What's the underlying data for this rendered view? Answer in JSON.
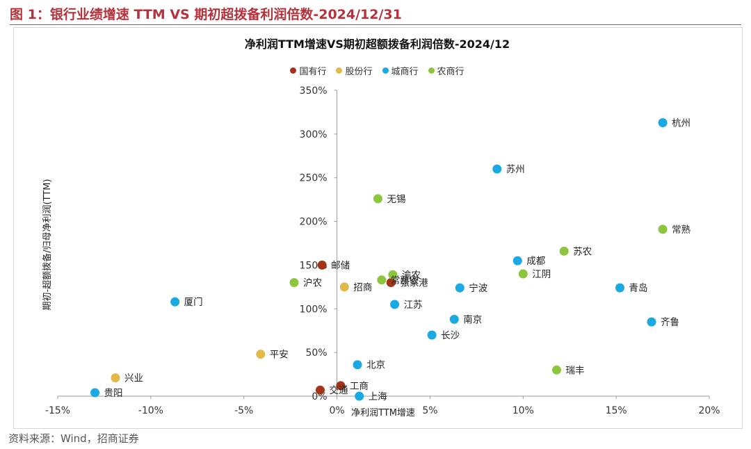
{
  "figure_title": "图 1：银行业绩增速 TTM VS  期初超拨备利润倍数-2024/12/31",
  "source": "资料来源：Wind，招商证券",
  "colors": {
    "国有行": "#a3341a",
    "股份行": "#e3b94a",
    "城商行": "#1ba9e3",
    "农商行": "#8cc63f"
  },
  "chart_data": {
    "type": "scatter",
    "title": "净利润TTM增速VS期初超额拨备利润倍数-2024/12",
    "xlabel": "净利润TTM增速",
    "ylabel": "期初-超额拨备/归母净利润(TTM)",
    "xlim": [
      -0.15,
      0.2
    ],
    "ylim": [
      0,
      3.5
    ],
    "x_ticks": [
      "-15%",
      "-10%",
      "-5%",
      "0%",
      "5%",
      "10%",
      "15%",
      "20%"
    ],
    "y_ticks": [
      "0%",
      "50%",
      "100%",
      "150%",
      "200%",
      "250%",
      "300%",
      "350%"
    ],
    "legend": [
      "国有行",
      "股份行",
      "城商行",
      "农商行"
    ],
    "points": [
      {
        "name": "邮储",
        "group": "国有行",
        "x": -0.008,
        "y": 1.5
      },
      {
        "name": "工商",
        "group": "国有行",
        "x": 0.002,
        "y": 0.12
      },
      {
        "name": "交通",
        "group": "国有行",
        "x": -0.009,
        "y": 0.07
      },
      {
        "name": "张家港",
        "group": "国有行",
        "x": 0.029,
        "y": 1.3
      },
      {
        "name": "招商",
        "group": "股份行",
        "x": 0.004,
        "y": 1.25
      },
      {
        "name": "平安",
        "group": "股份行",
        "x": -0.041,
        "y": 0.48
      },
      {
        "name": "兴业",
        "group": "股份行",
        "x": -0.119,
        "y": 0.21
      },
      {
        "name": "杭州",
        "group": "城商行",
        "x": 0.175,
        "y": 3.13
      },
      {
        "name": "苏州",
        "group": "城商行",
        "x": 0.086,
        "y": 2.6
      },
      {
        "name": "成都",
        "group": "城商行",
        "x": 0.097,
        "y": 1.55
      },
      {
        "name": "青岛",
        "group": "城商行",
        "x": 0.152,
        "y": 1.24
      },
      {
        "name": "齐鲁",
        "group": "城商行",
        "x": 0.169,
        "y": 0.85
      },
      {
        "name": "宁波",
        "group": "城商行",
        "x": 0.066,
        "y": 1.24
      },
      {
        "name": "江苏",
        "group": "城商行",
        "x": 0.031,
        "y": 1.05
      },
      {
        "name": "南京",
        "group": "城商行",
        "x": 0.063,
        "y": 0.88
      },
      {
        "name": "长沙",
        "group": "城商行",
        "x": 0.051,
        "y": 0.7
      },
      {
        "name": "北京",
        "group": "城商行",
        "x": 0.011,
        "y": 0.36
      },
      {
        "name": "上海",
        "group": "城商行",
        "x": 0.012,
        "y": 0.0
      },
      {
        "name": "厦门",
        "group": "城商行",
        "x": -0.087,
        "y": 1.08
      },
      {
        "name": "贵阳",
        "group": "城商行",
        "x": -0.13,
        "y": 0.04
      },
      {
        "name": "无锡",
        "group": "农商行",
        "x": 0.022,
        "y": 2.26
      },
      {
        "name": "常熟",
        "group": "农商行",
        "x": 0.175,
        "y": 1.91
      },
      {
        "name": "苏农",
        "group": "农商行",
        "x": 0.122,
        "y": 1.66
      },
      {
        "name": "江阴",
        "group": "农商行",
        "x": 0.1,
        "y": 1.4
      },
      {
        "name": "渝农",
        "group": "农商行",
        "x": 0.03,
        "y": 1.39
      },
      {
        "name": "常熟农",
        "group": "农商行",
        "x": 0.024,
        "y": 1.33
      },
      {
        "name": "沪农",
        "group": "农商行",
        "x": -0.023,
        "y": 1.3
      },
      {
        "name": "瑞丰",
        "group": "农商行",
        "x": 0.118,
        "y": 0.3
      }
    ]
  }
}
